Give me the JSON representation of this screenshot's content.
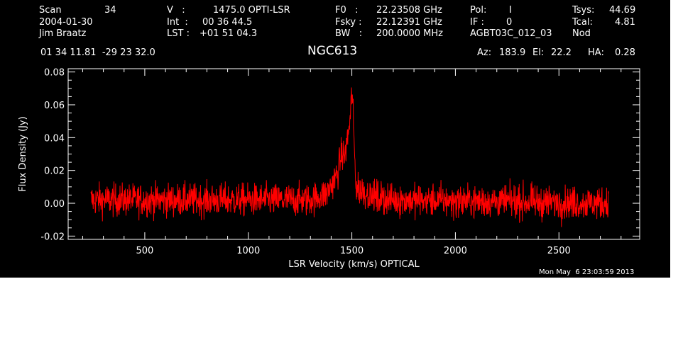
{
  "header": {
    "row1": {
      "scan_label": "Scan",
      "scan_value": "34",
      "v_label": "V   :",
      "v_value": "1475.0 OPTI-LSR",
      "f0_label": "F0   :",
      "f0_value": "22.23508 GHz",
      "pol_label": "Pol:",
      "pol_value": "I",
      "tsys_label": "Tsys:",
      "tsys_value": "44.69"
    },
    "row2": {
      "date": "2004-01-30",
      "int_label": "Int  :",
      "int_value": "00 36 44.5",
      "fsky_label": "Fsky :",
      "fsky_value": "22.12391 GHz",
      "if_label": "IF :",
      "if_value": "0",
      "tcal_label": "Tcal:",
      "tcal_value": "4.81"
    },
    "row3": {
      "observer": "Jim Braatz",
      "lst_label": "LST :",
      "lst_value": "+01 51 04.3",
      "bw_label": "BW   :",
      "bw_value": "200.0000 MHz",
      "project": "AGBT03C_012_03",
      "proc": "Nod"
    },
    "coords": "01 34 11.81  -29 23 32.0",
    "source": "NGC613",
    "az_label": "Az:",
    "az_value": "183.9",
    "el_label": "El:",
    "el_value": "22.2",
    "ha_label": "HA:",
    "ha_value": "0.28"
  },
  "timestamp": "Mon May  6 23:03:59 2013",
  "chart_data": {
    "type": "line",
    "xlabel": "LSR Velocity (km/s) OPTICAL",
    "ylabel": "Flux Density (Jy)",
    "xlim": [
      130,
      2890
    ],
    "ylim": [
      -0.022,
      0.082
    ],
    "xticks": [
      500,
      1000,
      1500,
      2000,
      2500
    ],
    "xtick_labels": [
      "500",
      "1000",
      "1500",
      "2000",
      "2500"
    ],
    "yticks": [
      -0.02,
      0.0,
      0.02,
      0.04,
      0.06,
      0.08
    ],
    "ytick_labels": [
      "-0.02",
      "0.00",
      "0.02",
      "0.04",
      "0.06",
      "0.08"
    ],
    "series_color": "#ff0000",
    "x_range": [
      240,
      2740
    ],
    "noise_rms": 0.005,
    "profile": [
      [
        240,
        0.002
      ],
      [
        1300,
        0.002
      ],
      [
        1380,
        0.006
      ],
      [
        1430,
        0.018
      ],
      [
        1450,
        0.03
      ],
      [
        1465,
        0.028
      ],
      [
        1480,
        0.04
      ],
      [
        1495,
        0.055
      ],
      [
        1502,
        0.062
      ],
      [
        1510,
        0.04
      ],
      [
        1520,
        0.01
      ],
      [
        1600,
        0.004
      ],
      [
        1700,
        0.002
      ],
      [
        2740,
        0.0
      ]
    ]
  }
}
